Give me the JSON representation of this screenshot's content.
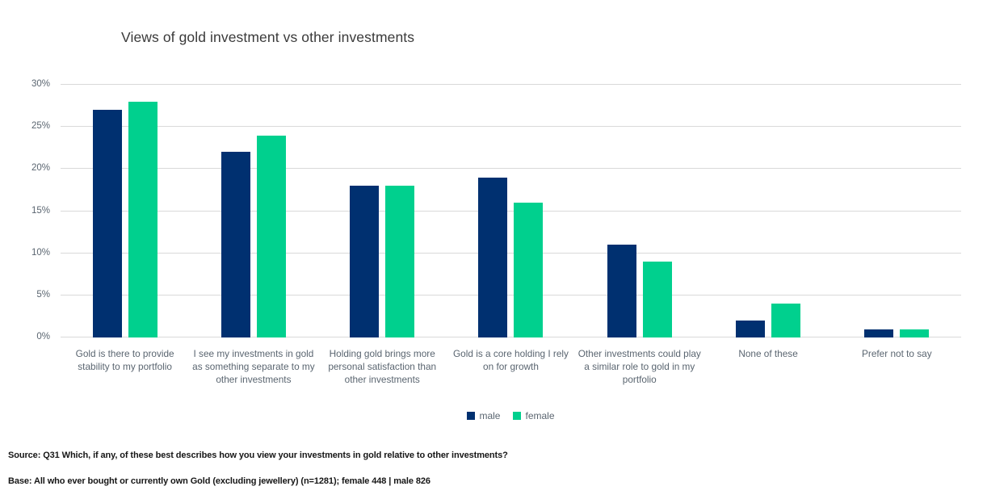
{
  "title": "Views of gold investment vs other investments",
  "chart_data": {
    "type": "bar",
    "categories": [
      "Gold is there to provide stability to my portfolio",
      "I see my investments in gold as something separate to my other investments",
      "Holding gold brings more personal satisfaction than other investments",
      "Gold is a core holding I rely on for growth",
      "Other investments could play a similar role to gold in my portfolio",
      "None of these",
      "Prefer not to say"
    ],
    "series": [
      {
        "name": "male",
        "color": "#003070",
        "values": [
          27,
          22,
          18,
          19,
          11,
          2,
          1
        ]
      },
      {
        "name": "female",
        "color": "#00d08e",
        "values": [
          28,
          24,
          18,
          16,
          9,
          4,
          1
        ]
      }
    ],
    "title": "Views of gold investment vs other investments",
    "xlabel": "",
    "ylabel": "",
    "ylim": [
      0,
      30
    ],
    "yticks": [
      "0%",
      "5%",
      "10%",
      "15%",
      "20%",
      "25%",
      "30%"
    ],
    "grid": true,
    "legend_position": "bottom"
  },
  "footnotes": {
    "source": "Source: Q31 Which, if any, of these best describes how you view your investments in gold relative to other investments?",
    "base": "Base: All who ever bought or currently own Gold (excluding jewellery) (n=1281); female 448 | male 826"
  }
}
